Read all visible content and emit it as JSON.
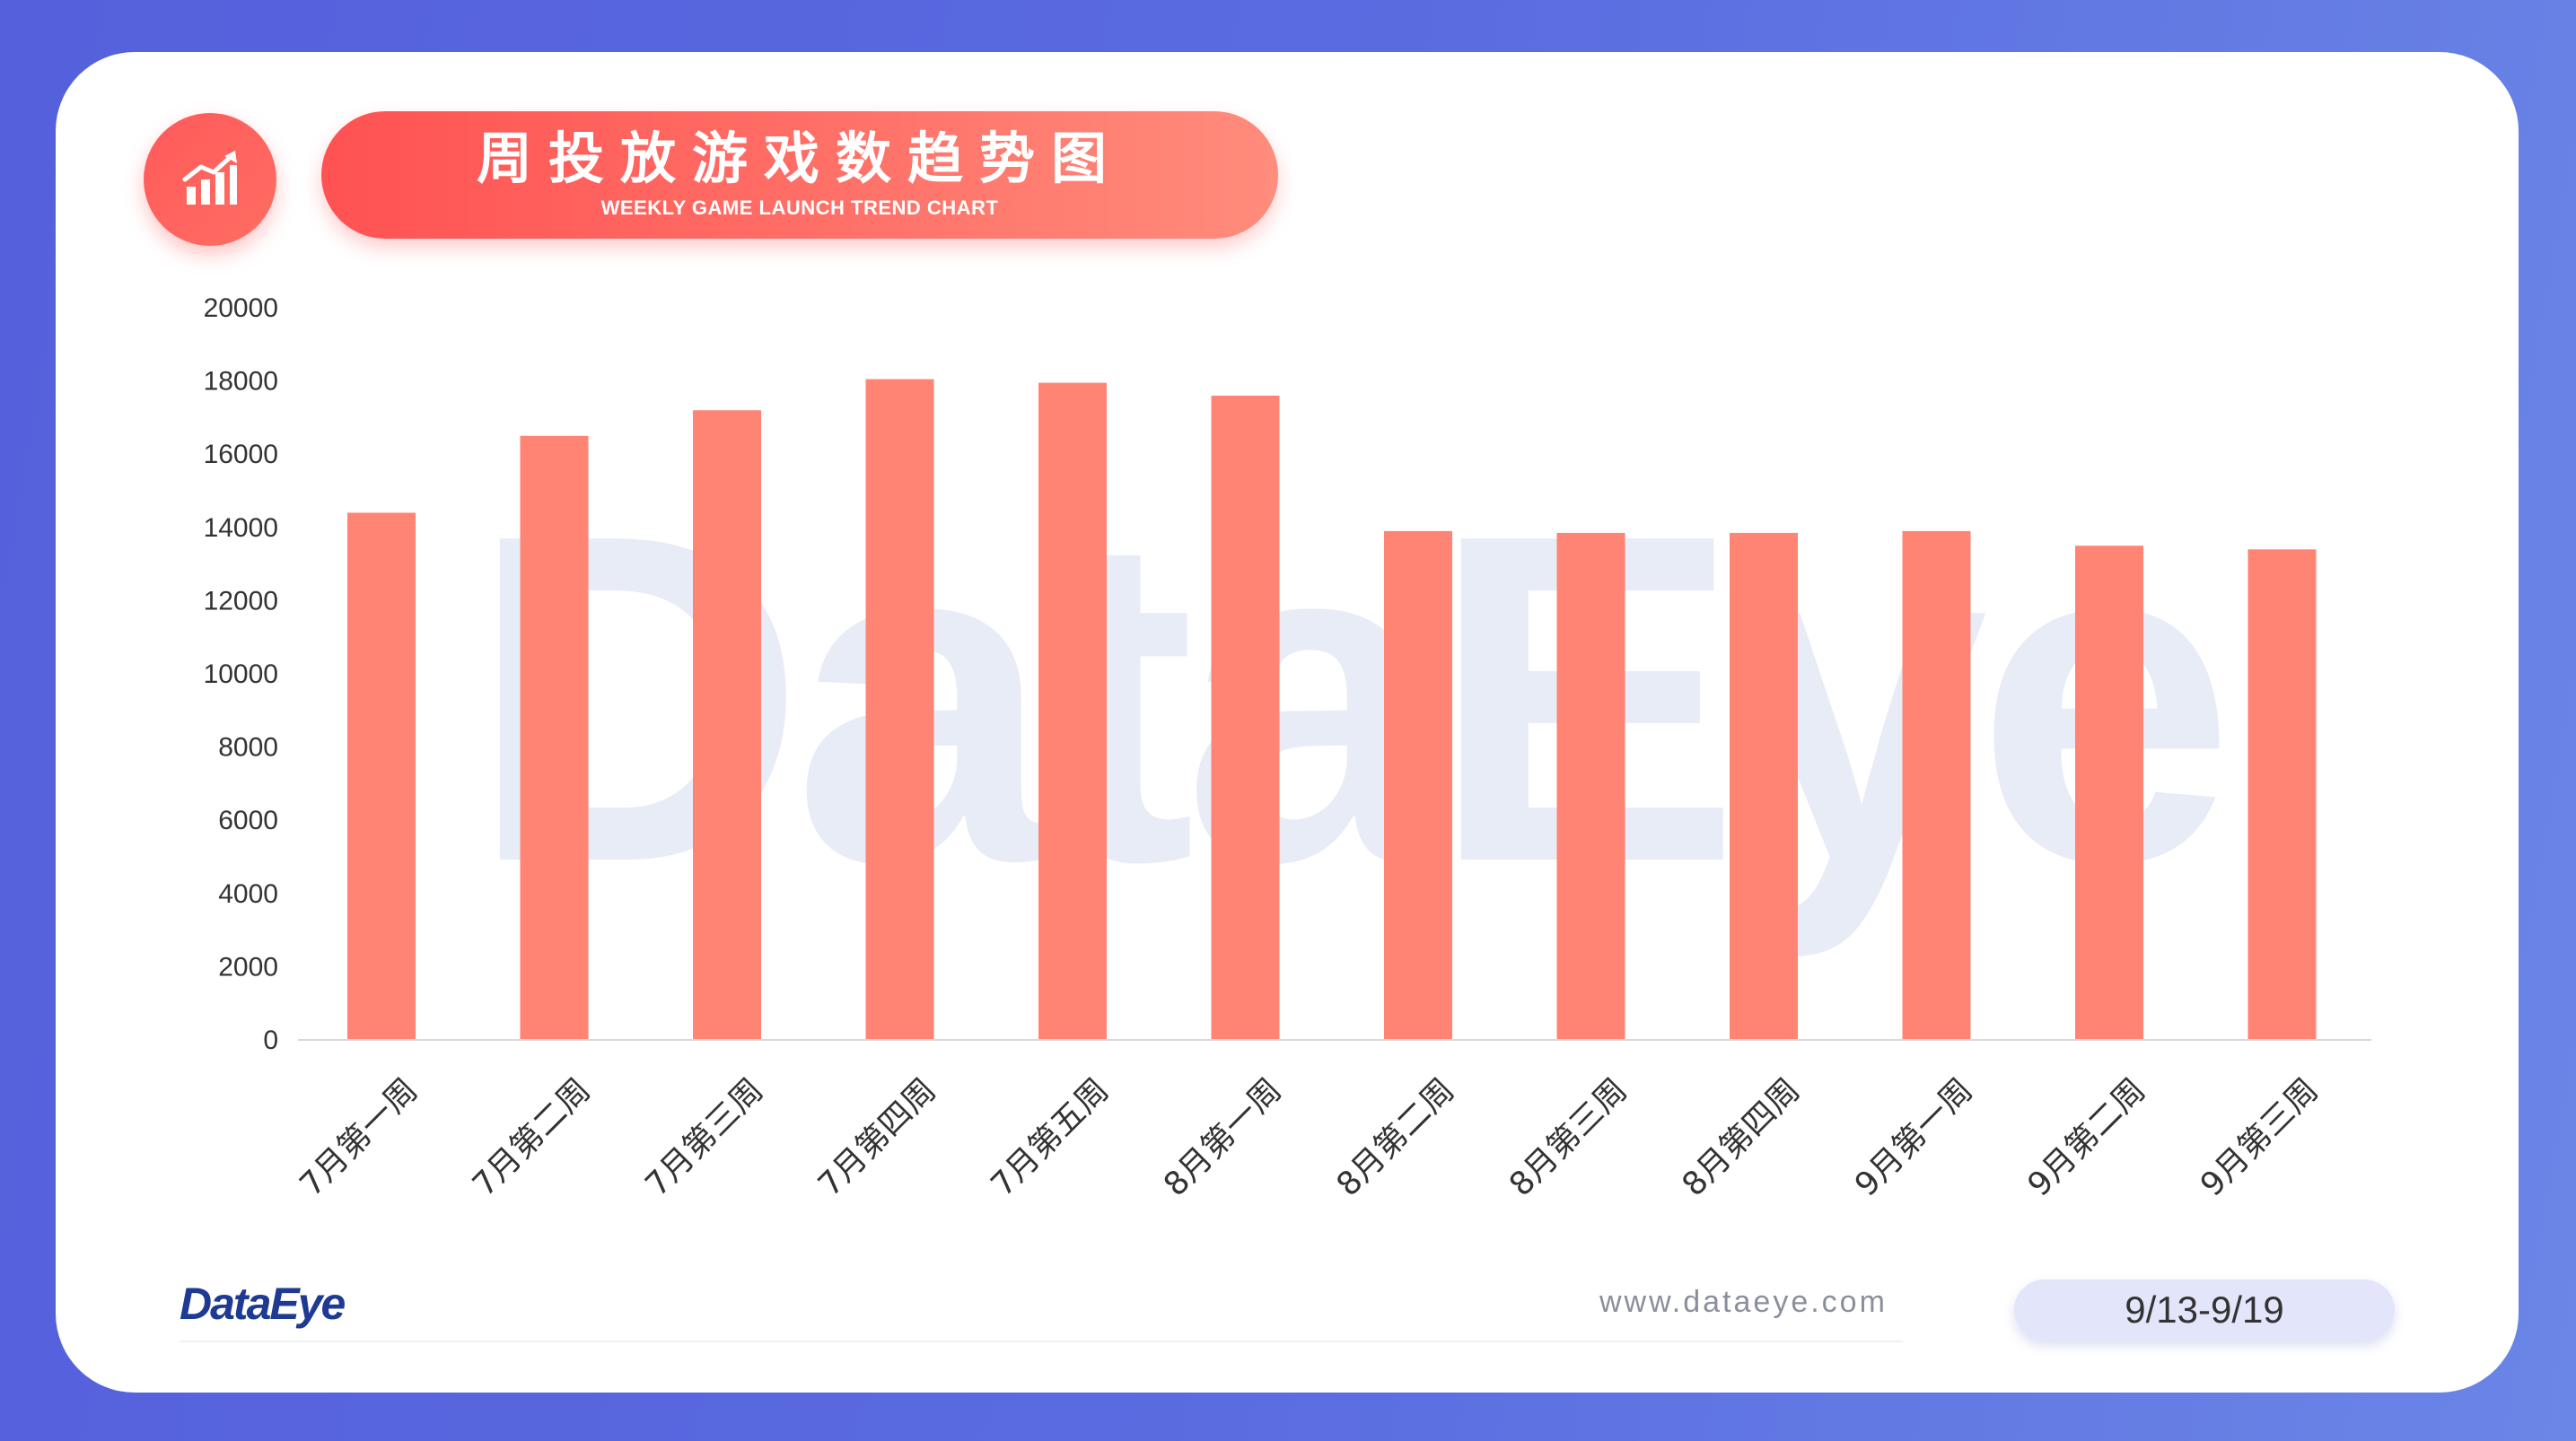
{
  "header": {
    "icon": "bar-chart-trend-icon",
    "title_cn": "周投放游戏数趋势图",
    "title_en": "WEEKLY GAME LAUNCH TREND CHART"
  },
  "watermark": "DataEye",
  "footer": {
    "brand": "DataEye",
    "website": "www.dataeye.com",
    "date_range": "9/13-9/19"
  },
  "colors": {
    "bar": "#ff8474",
    "accent": "#ff5a5a",
    "background": "#5a66de"
  },
  "chart_data": {
    "type": "bar",
    "title": "周投放游戏数趋势图",
    "xlabel": "",
    "ylabel": "",
    "ylim": [
      0,
      20000
    ],
    "yticks": [
      0,
      2000,
      4000,
      6000,
      8000,
      10000,
      12000,
      14000,
      16000,
      18000,
      20000
    ],
    "grid": false,
    "categories": [
      "7月第一周",
      "7月第二周",
      "7月第三周",
      "7月第四周",
      "7月第五周",
      "8月第一周",
      "8月第二周",
      "8月第三周",
      "8月第四周",
      "9月第一周",
      "9月第二周",
      "9月第三周"
    ],
    "values": [
      14400,
      16500,
      17200,
      18050,
      17950,
      17600,
      13900,
      13850,
      13850,
      13900,
      13500,
      13400
    ]
  }
}
